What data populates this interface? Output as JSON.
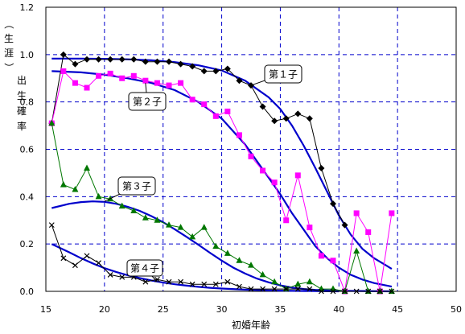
{
  "chart_data": {
    "type": "line",
    "xlabel": "初婚年齢",
    "ylabel": "（生涯）出生確率",
    "xlim": [
      15,
      50
    ],
    "ylim": [
      0,
      1.2
    ],
    "x_ticks": [
      "15",
      "20",
      "25",
      "30",
      "35",
      "40",
      "45",
      "50"
    ],
    "y_ticks": [
      "0.0",
      "0.2",
      "0.4",
      "0.6",
      "0.8",
      "1.0",
      "1.2"
    ],
    "grid": true,
    "colors": {
      "plot_bg": "#ffffff",
      "grid": "#0000cc",
      "fit": "#0000cc"
    },
    "series": [
      {
        "name": "第１子",
        "marker": "diamond",
        "color": "#000000",
        "x": [
          15.5,
          16.5,
          17.5,
          18.5,
          19.5,
          20.5,
          21.5,
          22.5,
          23.5,
          24.5,
          25.5,
          26.5,
          27.5,
          28.5,
          29.5,
          30.5,
          31.5,
          32.5,
          33.5,
          34.5,
          35.5,
          36.5,
          37.5,
          38.5,
          39.5,
          40.5
        ],
        "y": [
          0.71,
          1.0,
          0.96,
          0.98,
          0.98,
          0.98,
          0.98,
          0.98,
          0.97,
          0.97,
          0.97,
          0.96,
          0.95,
          0.93,
          0.93,
          0.94,
          0.89,
          0.87,
          0.78,
          0.72,
          0.73,
          0.75,
          0.73,
          0.52,
          0.37,
          0.28
        ],
        "fit": [
          [
            15.5,
            0.983
          ],
          [
            18,
            0.983
          ],
          [
            20,
            0.982
          ],
          [
            22,
            0.98
          ],
          [
            24,
            0.976
          ],
          [
            26,
            0.968
          ],
          [
            28,
            0.955
          ],
          [
            30,
            0.933
          ],
          [
            32,
            0.89
          ],
          [
            34,
            0.82
          ],
          [
            35,
            0.77
          ],
          [
            36,
            0.7
          ],
          [
            37,
            0.615
          ],
          [
            38,
            0.52
          ],
          [
            39,
            0.42
          ],
          [
            40,
            0.32
          ],
          [
            41,
            0.24
          ],
          [
            42,
            0.18
          ],
          [
            43,
            0.14
          ],
          [
            44,
            0.11
          ],
          [
            44.5,
            0.095
          ]
        ]
      },
      {
        "name": "第２子",
        "marker": "square",
        "color": "#ff00ff",
        "x": [
          15.5,
          16.5,
          17.5,
          18.5,
          19.5,
          20.5,
          21.5,
          22.5,
          23.5,
          24.5,
          25.5,
          26.5,
          27.5,
          28.5,
          29.5,
          30.5,
          31.5,
          32.5,
          33.5,
          34.5,
          35.5,
          36.5,
          37.5,
          38.5,
          39.5,
          40.5,
          41.5,
          42.5,
          43.5,
          44.5
        ],
        "y": [
          0.71,
          0.93,
          0.88,
          0.86,
          0.91,
          0.92,
          0.9,
          0.91,
          0.89,
          0.88,
          0.87,
          0.88,
          0.81,
          0.79,
          0.74,
          0.76,
          0.66,
          0.57,
          0.51,
          0.46,
          0.3,
          0.49,
          0.27,
          0.15,
          0.13,
          0.0,
          0.33,
          0.25,
          0.0,
          0.33
        ],
        "fit": [
          [
            15.5,
            0.93
          ],
          [
            18,
            0.925
          ],
          [
            20,
            0.915
          ],
          [
            22,
            0.9
          ],
          [
            24,
            0.88
          ],
          [
            26,
            0.85
          ],
          [
            28,
            0.8
          ],
          [
            30,
            0.73
          ],
          [
            32,
            0.62
          ],
          [
            34,
            0.48
          ],
          [
            35,
            0.41
          ],
          [
            36,
            0.33
          ],
          [
            37,
            0.26
          ],
          [
            38,
            0.19
          ],
          [
            39,
            0.14
          ],
          [
            40,
            0.1
          ],
          [
            41,
            0.07
          ],
          [
            42,
            0.05
          ],
          [
            43,
            0.035
          ],
          [
            44.5,
            0.02
          ]
        ]
      },
      {
        "name": "第３子",
        "marker": "triangle",
        "color": "#007700",
        "x": [
          15.5,
          16.5,
          17.5,
          18.5,
          19.5,
          20.5,
          21.5,
          22.5,
          23.5,
          24.5,
          25.5,
          26.5,
          27.5,
          28.5,
          29.5,
          30.5,
          31.5,
          32.5,
          33.5,
          34.5,
          35.5,
          36.5,
          37.5,
          38.5,
          39.5,
          40.5,
          41.5,
          42.5,
          43.5,
          44.5
        ],
        "y": [
          0.71,
          0.45,
          0.43,
          0.52,
          0.4,
          0.39,
          0.36,
          0.34,
          0.31,
          0.3,
          0.28,
          0.27,
          0.23,
          0.27,
          0.19,
          0.16,
          0.13,
          0.11,
          0.07,
          0.04,
          0.01,
          0.03,
          0.04,
          0.01,
          0.01,
          0.0,
          0.17,
          0.0,
          0.0,
          0.0
        ],
        "fit": [
          [
            15.5,
            0.352
          ],
          [
            17,
            0.37
          ],
          [
            18,
            0.377
          ],
          [
            19,
            0.38
          ],
          [
            20,
            0.378
          ],
          [
            21,
            0.37
          ],
          [
            22,
            0.357
          ],
          [
            23,
            0.34
          ],
          [
            24,
            0.318
          ],
          [
            25,
            0.292
          ],
          [
            26,
            0.262
          ],
          [
            27,
            0.23
          ],
          [
            28,
            0.197
          ],
          [
            29,
            0.163
          ],
          [
            30,
            0.13
          ],
          [
            31,
            0.1
          ],
          [
            32,
            0.075
          ],
          [
            33,
            0.054
          ],
          [
            34,
            0.038
          ],
          [
            35,
            0.025
          ],
          [
            36,
            0.016
          ],
          [
            37,
            0.01
          ],
          [
            38,
            0.006
          ],
          [
            40,
            0.002
          ],
          [
            44.5,
            0.0
          ]
        ]
      },
      {
        "name": "第４子",
        "marker": "x",
        "color": "#000000",
        "x": [
          15.5,
          16.5,
          17.5,
          18.5,
          19.5,
          20.5,
          21.5,
          22.5,
          23.5,
          24.5,
          25.5,
          26.5,
          27.5,
          28.5,
          29.5,
          30.5,
          31.5,
          32.5,
          33.5,
          34.5,
          35.5,
          36.5,
          37.5,
          38.5,
          39.5,
          40.5,
          41.5,
          42.5,
          43.5,
          44.5
        ],
        "y": [
          0.28,
          0.14,
          0.11,
          0.15,
          0.12,
          0.07,
          0.06,
          0.06,
          0.04,
          0.05,
          0.04,
          0.04,
          0.03,
          0.03,
          0.03,
          0.04,
          0.02,
          0.01,
          0.01,
          0.01,
          0.01,
          0.01,
          0.01,
          0.0,
          0.0,
          0.0,
          0.0,
          0.0,
          0.0,
          0.0
        ],
        "fit": [
          [
            15.5,
            0.2
          ],
          [
            17,
            0.165
          ],
          [
            18,
            0.14
          ],
          [
            19,
            0.118
          ],
          [
            20,
            0.098
          ],
          [
            21,
            0.082
          ],
          [
            22,
            0.068
          ],
          [
            23,
            0.056
          ],
          [
            24,
            0.046
          ],
          [
            25,
            0.037
          ],
          [
            26,
            0.03
          ],
          [
            27,
            0.024
          ],
          [
            28,
            0.019
          ],
          [
            29,
            0.015
          ],
          [
            30,
            0.012
          ],
          [
            32,
            0.007
          ],
          [
            34,
            0.004
          ],
          [
            36,
            0.002
          ],
          [
            40,
            0.0
          ]
        ]
      }
    ]
  }
}
